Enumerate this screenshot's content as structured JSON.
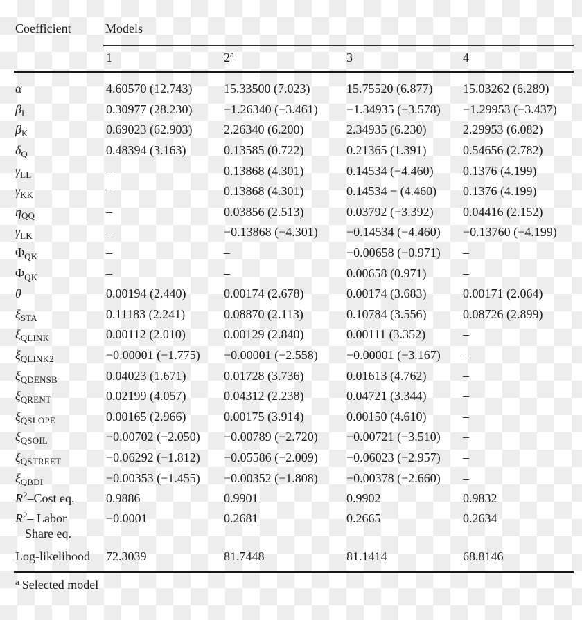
{
  "header": {
    "coefficient": "Coefficient",
    "models": "Models",
    "model_columns": [
      {
        "label": "1",
        "sup": ""
      },
      {
        "label": "2",
        "sup": "a"
      },
      {
        "label": "3",
        "sup": ""
      },
      {
        "label": "4",
        "sup": ""
      }
    ]
  },
  "rows": [
    {
      "label": [
        [
          "i",
          "α"
        ]
      ],
      "values": [
        "4.60570 (12.743)",
        "15.33500 (7.023)",
        "15.75520 (6.877)",
        "15.03262 (6.289)"
      ]
    },
    {
      "label": [
        [
          "i",
          "β"
        ],
        [
          "sub",
          "L"
        ]
      ],
      "values": [
        "0.30977 (28.230)",
        "−1.26340 (−3.461)",
        "−1.34935 (−3.578)",
        "−1.29953 (−3.437)"
      ]
    },
    {
      "label": [
        [
          "i",
          "β"
        ],
        [
          "sub",
          "K"
        ]
      ],
      "values": [
        "0.69023 (62.903)",
        "2.26340 (6.200)",
        "2.34935 (6.230)",
        "2.29953 (6.082)"
      ]
    },
    {
      "label": [
        [
          "i",
          "δ"
        ],
        [
          "sub",
          "Q"
        ]
      ],
      "values": [
        "0.48394 (3.163)",
        "0.13585 (0.722)",
        "0.21365 (1.391)",
        "0.54656 (2.782)"
      ]
    },
    {
      "label": [
        [
          "i",
          "γ"
        ],
        [
          "sub",
          "LL"
        ]
      ],
      "values": [
        "–",
        "0.13868 (4.301)",
        "0.14534 (−4.460)",
        "0.1376 (4.199)"
      ]
    },
    {
      "label": [
        [
          "i",
          "γ"
        ],
        [
          "sub",
          "KK"
        ]
      ],
      "values": [
        "–",
        "0.13868 (4.301)",
        "0.14534 − (4.460)",
        "0.1376 (4.199)"
      ]
    },
    {
      "label": [
        [
          "i",
          "η"
        ],
        [
          "sub",
          "QQ"
        ]
      ],
      "values": [
        "–",
        "0.03856 (2.513)",
        "0.03792 (−3.392)",
        "0.04416 (2.152)"
      ]
    },
    {
      "label": [
        [
          "i",
          "γ"
        ],
        [
          "sub",
          "LK"
        ]
      ],
      "values": [
        "–",
        "−0.13868 (−4.301)",
        "−0.14534 (−4.460)",
        "−0.13760 (−4.199)"
      ]
    },
    {
      "label": [
        [
          "up",
          "Φ"
        ],
        [
          "sub",
          "QK"
        ]
      ],
      "values": [
        "–",
        "–",
        "−0.00658 (−0.971)",
        "–"
      ]
    },
    {
      "label": [
        [
          "up",
          "Φ"
        ],
        [
          "sub",
          "QK"
        ]
      ],
      "values": [
        "–",
        "–",
        "0.00658 (0.971)",
        "–"
      ]
    },
    {
      "label": [
        [
          "i",
          "θ"
        ]
      ],
      "values": [
        "0.00194 (2.440)",
        "0.00174 (2.678)",
        "0.00174 (3.683)",
        "0.00171 (2.064)"
      ]
    },
    {
      "label": [
        [
          "i",
          "ξ"
        ],
        [
          "sub",
          "STA"
        ]
      ],
      "values": [
        "0.11183 (2.241)",
        "0.08870 (2.113)",
        "0.10784 (3.556)",
        "0.08726 (2.899)"
      ]
    },
    {
      "label": [
        [
          "i",
          "ξ"
        ],
        [
          "sub",
          "QLINK"
        ]
      ],
      "values": [
        "0.00112 (2.010)",
        "0.00129 (2.840)",
        "0.00111 (3.352)",
        "–"
      ]
    },
    {
      "label": [
        [
          "i",
          "ξ"
        ],
        [
          "sub",
          "QLINK2"
        ]
      ],
      "values": [
        "−0.00001 (−1.775)",
        "−0.00001 (−2.558)",
        "−0.00001 (−3.167)",
        "–"
      ]
    },
    {
      "label": [
        [
          "i",
          "ξ"
        ],
        [
          "sub",
          "QDENSB"
        ]
      ],
      "values": [
        "0.04023 (1.671)",
        "0.01728 (3.736)",
        "0.01613 (4.762)",
        "–"
      ]
    },
    {
      "label": [
        [
          "i",
          "ξ"
        ],
        [
          "sub",
          "QRENT"
        ]
      ],
      "values": [
        "0.02199 (4.057)",
        "0.04312 (2.238)",
        "0.04721 (3.344)",
        "–"
      ]
    },
    {
      "label": [
        [
          "i",
          "ξ"
        ],
        [
          "sub",
          "QSLOPE"
        ]
      ],
      "values": [
        "0.00165 (2.966)",
        "0.00175 (3.914)",
        "0.00150 (4.610)",
        "–"
      ]
    },
    {
      "label": [
        [
          "i",
          "ξ"
        ],
        [
          "sub",
          "QSOIL"
        ]
      ],
      "values": [
        "−0.00702 (−2.050)",
        "−0.00789 (−2.720)",
        "−0.00721 (−3.510)",
        "–"
      ]
    },
    {
      "label": [
        [
          "i",
          "ξ"
        ],
        [
          "sub",
          "QSTREET"
        ]
      ],
      "values": [
        "−0.06292 (−1.812)",
        "−0.05586 (−2.009)",
        "−0.06023 (−2.957)",
        "–"
      ]
    },
    {
      "label": [
        [
          "i",
          "ξ"
        ],
        [
          "sub",
          "QBDI"
        ]
      ],
      "values": [
        "−0.00353 (−1.455)",
        "−0.00352 (−1.808)",
        "−0.00378 (−2.660)",
        "–"
      ]
    },
    {
      "label": [
        [
          "i",
          "R"
        ],
        [
          "sup",
          "2"
        ],
        [
          "plain",
          "–Cost eq."
        ]
      ],
      "values": [
        "0.9886",
        "0.9901",
        "0.9902",
        "0.9832"
      ]
    },
    {
      "label": [
        [
          "i",
          "R"
        ],
        [
          "sup",
          "2"
        ],
        [
          "plain",
          "– Labor"
        ],
        [
          "l2",
          "Share eq."
        ]
      ],
      "tall": true,
      "values": [
        "−0.0001",
        "0.2681",
        "0.2665",
        "0.2634"
      ]
    },
    {
      "label": [
        [
          "plain",
          "Log-likelihood"
        ]
      ],
      "values": [
        "72.3039",
        "81.7448",
        "81.1414",
        "68.8146"
      ]
    }
  ],
  "footnote": {
    "marker": "a",
    "text": "Selected model"
  },
  "colors": {
    "text": "#1d1d1d",
    "rule": "#161616",
    "checker_gray": "#ededed",
    "checker_white": "#ffffff"
  }
}
